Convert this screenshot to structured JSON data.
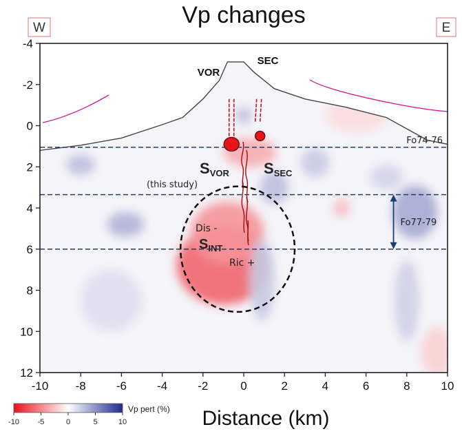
{
  "chart_data": {
    "type": "heatmap",
    "title": "Vp changes",
    "xlabel": "Distance (km)",
    "ylabel": "",
    "xlim": [
      -10,
      10
    ],
    "ylim": [
      12,
      -4
    ],
    "x_ticks": [
      -10,
      -8,
      -6,
      -4,
      -2,
      0,
      2,
      4,
      6,
      8,
      10
    ],
    "y_ticks": [
      -4,
      -2,
      0,
      2,
      4,
      6,
      8,
      10,
      12
    ],
    "corner_labels": {
      "west": "W",
      "east": "E"
    },
    "colorbar": {
      "label": "Vp pert (%)",
      "ticks": [
        -10,
        -5,
        0,
        5,
        10
      ],
      "colors": {
        "negative": "#e8121e",
        "zero": "#ffffff",
        "positive": "#1e2a8c"
      }
    },
    "topography": [
      [
        -10,
        1.2
      ],
      [
        -8,
        0.95
      ],
      [
        -6,
        0.6
      ],
      [
        -4,
        -0.05
      ],
      [
        -3,
        -0.4
      ],
      [
        -2,
        -1.3
      ],
      [
        -1.2,
        -2.2
      ],
      [
        -0.8,
        -3.1
      ],
      [
        0,
        -3.1
      ],
      [
        0.5,
        -2.6
      ],
      [
        1.5,
        -1.8
      ],
      [
        3,
        -1.3
      ],
      [
        5,
        -0.9
      ],
      [
        7,
        -0.4
      ],
      [
        9,
        0.7
      ],
      [
        10,
        0.9
      ]
    ],
    "anomalies": [
      {
        "x": -1.0,
        "y": 6.8,
        "rx": 2.3,
        "ry": 1.9,
        "value": -6.5
      },
      {
        "x": -0.8,
        "y": 5.2,
        "rx": 1.8,
        "ry": 1.5,
        "value": -4.5
      },
      {
        "x": 0.3,
        "y": 1.3,
        "rx": 1.3,
        "ry": 0.7,
        "value": -3.5
      },
      {
        "x": 8.4,
        "y": 4.2,
        "rx": 1.1,
        "ry": 1.3,
        "value": 4
      },
      {
        "x": -5.8,
        "y": 4.8,
        "rx": 0.9,
        "ry": 0.6,
        "value": 3.5
      },
      {
        "x": -8.0,
        "y": 1.9,
        "rx": 0.7,
        "ry": 0.5,
        "value": 3
      },
      {
        "x": 1.5,
        "y": 3.0,
        "rx": 0.7,
        "ry": 0.8,
        "value": 3
      },
      {
        "x": 0.9,
        "y": 7.5,
        "rx": 0.6,
        "ry": 2.0,
        "value": 2.5
      },
      {
        "x": 3.5,
        "y": 1.8,
        "rx": 0.7,
        "ry": 0.7,
        "value": 2.5
      },
      {
        "x": 8.0,
        "y": 8.5,
        "rx": 0.6,
        "ry": 2.0,
        "value": 2.2
      },
      {
        "x": 0.0,
        "y": -0.5,
        "rx": 0.4,
        "ry": 0.4,
        "value": 3
      },
      {
        "x": 4.8,
        "y": 4.0,
        "rx": 0.4,
        "ry": 0.4,
        "value": -3
      },
      {
        "x": 7.0,
        "y": 2.5,
        "rx": 0.8,
        "ry": 0.6,
        "value": 2
      },
      {
        "x": -6.5,
        "y": 8.5,
        "rx": 1.5,
        "ry": 1.5,
        "value": 1.5
      },
      {
        "x": 5.5,
        "y": -0.5,
        "rx": 1.5,
        "ry": 0.8,
        "value": -1.5
      },
      {
        "x": 9.5,
        "y": 11,
        "rx": 0.8,
        "ry": 1.2,
        "value": -2
      }
    ],
    "horizontal_lines": [
      {
        "y": 1.05,
        "label": "Fo74-76"
      },
      {
        "y": 3.35,
        "label": ""
      },
      {
        "y": 6.0,
        "label": ""
      }
    ],
    "range_arrow": {
      "x": 7.35,
      "y_from": 3.35,
      "y_to": 6.0,
      "label": "Fo77-79"
    },
    "conduits": [
      {
        "name": "VOR",
        "x": -0.6,
        "y_top": -1.3,
        "y_bottom": 0.8
      },
      {
        "name": "SEC",
        "x": 0.75,
        "y_top": -1.3,
        "y_bottom": -0.2
      }
    ],
    "reservoirs": [
      {
        "x": -0.6,
        "y": 0.9,
        "size": "large"
      },
      {
        "x": 0.8,
        "y": 0.5,
        "size": "small"
      }
    ],
    "ellipse": {
      "x": -0.3,
      "y": 6.0,
      "rx": 2.8,
      "ry": 3.05
    },
    "text_labels": {
      "vor": "VOR",
      "sec": "SEC",
      "s_main": "S",
      "s_vor_sub": "VOR",
      "s_sec_sub": "SEC",
      "this_study": "(this study)",
      "dis_minus": "Dis -",
      "s_int_sub": "INT",
      "ric_plus": "Ric +"
    }
  }
}
